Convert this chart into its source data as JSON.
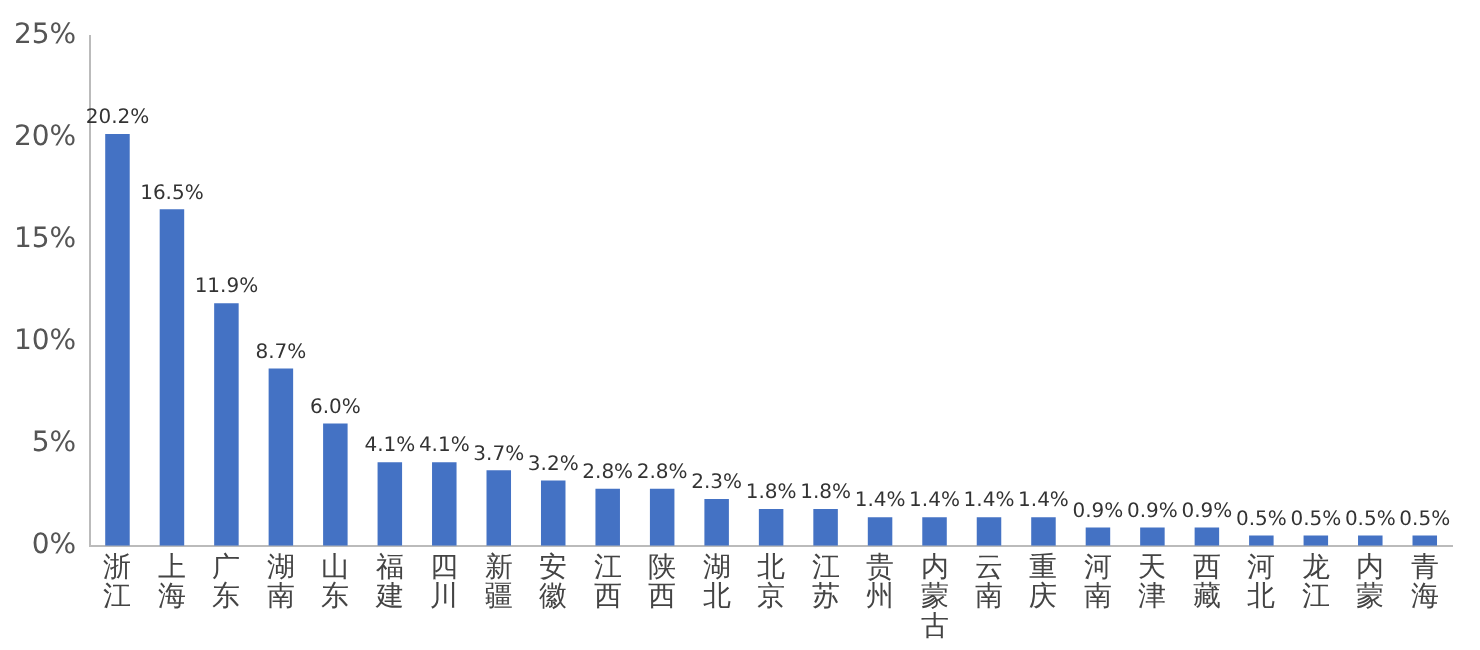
{
  "chart_data": {
    "type": "bar",
    "categories": [
      "浙江",
      "上海",
      "广东",
      "湖南",
      "山东",
      "福建",
      "四川",
      "新疆",
      "安徽",
      "江西",
      "陕西",
      "湖北",
      "北京",
      "江苏",
      "贵州",
      "内蒙古",
      "云南",
      "重庆",
      "河南",
      "天津",
      "西藏",
      "河北",
      "龙江",
      "内蒙",
      "青海"
    ],
    "values": [
      20.2,
      16.5,
      11.9,
      8.7,
      6.0,
      4.1,
      4.1,
      3.7,
      3.2,
      2.8,
      2.8,
      2.3,
      1.8,
      1.8,
      1.4,
      1.4,
      1.4,
      1.4,
      0.9,
      0.9,
      0.9,
      0.5,
      0.5,
      0.5,
      0.5
    ],
    "value_labels": [
      "20.2%",
      "16.5%",
      "11.9%",
      "8.7%",
      "6.0%",
      "4.1%",
      "4.1%",
      "3.7%",
      "3.2%",
      "2.8%",
      "2.8%",
      "2.3%",
      "1.8%",
      "1.8%",
      "1.4%",
      "1.4%",
      "1.4%",
      "1.4%",
      "0.9%",
      "0.9%",
      "0.9%",
      "0.5%",
      "0.5%",
      "0.5%",
      "0.5%"
    ],
    "color": "#4472c4",
    "ylim": [
      0,
      25
    ],
    "yticks": [
      {
        "value": 0,
        "label": "0%"
      },
      {
        "value": 5,
        "label": "5%"
      },
      {
        "value": 10,
        "label": "10%"
      },
      {
        "value": 15,
        "label": "15%"
      },
      {
        "value": 20,
        "label": "20%"
      },
      {
        "value": 25,
        "label": "25%"
      }
    ],
    "grid": false,
    "legend": false
  }
}
